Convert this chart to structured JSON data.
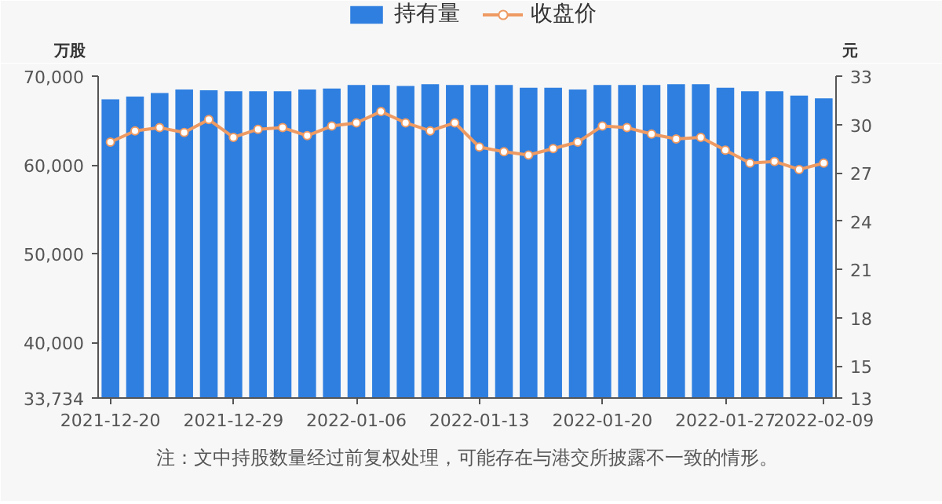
{
  "chart_data": {
    "type": "bar",
    "categories": [
      "2021-12-20",
      null,
      null,
      null,
      null,
      "2021-12-29",
      null,
      null,
      null,
      null,
      "2022-01-06",
      null,
      null,
      null,
      null,
      "2022-01-13",
      null,
      null,
      null,
      null,
      "2022-01-20",
      null,
      null,
      null,
      null,
      "2022-01-27",
      null,
      null,
      null,
      "2022-02-09"
    ],
    "series": [
      {
        "name": "持有量",
        "color": "#2f7fe0",
        "values": [
          67400,
          67700,
          68100,
          68500,
          68400,
          68300,
          68300,
          68300,
          68500,
          68600,
          69000,
          69000,
          68900,
          69100,
          69000,
          69000,
          69000,
          68700,
          68700,
          68500,
          69000,
          69000,
          69000,
          69100,
          69100,
          68700,
          68300,
          68300,
          67800,
          67500
        ]
      },
      {
        "name": "收盘价",
        "type": "line",
        "axis": "y2",
        "color": "#ee9a62",
        "marker": "circle",
        "values": [
          28.9,
          29.6,
          29.8,
          29.5,
          30.3,
          29.2,
          29.7,
          29.8,
          29.3,
          29.9,
          30.1,
          30.8,
          30.1,
          29.6,
          30.1,
          28.6,
          28.3,
          28.1,
          28.5,
          28.9,
          29.9,
          29.8,
          29.4,
          29.1,
          29.2,
          28.4,
          27.6,
          27.7,
          27.2,
          27.6
        ]
      }
    ],
    "ylabel": "万股",
    "y2label": "元",
    "ylim": [
      33734,
      70000
    ],
    "yticks": [
      {
        "value": 33734,
        "label": "33,734"
      },
      {
        "value": 40000,
        "label": "40,000"
      },
      {
        "value": 50000,
        "label": "50,000"
      },
      {
        "value": 60000,
        "label": "60,000"
      },
      {
        "value": 70000,
        "label": "70,000"
      }
    ],
    "y2lim": [
      13,
      33
    ],
    "y2ticks": [
      13,
      15,
      18,
      21,
      24,
      27,
      30,
      33
    ],
    "grid": false,
    "legend": "top",
    "annotations": [
      "注：文中持股数量经过前复权处理，可能存在与港交所披露不一致的情形。"
    ]
  }
}
